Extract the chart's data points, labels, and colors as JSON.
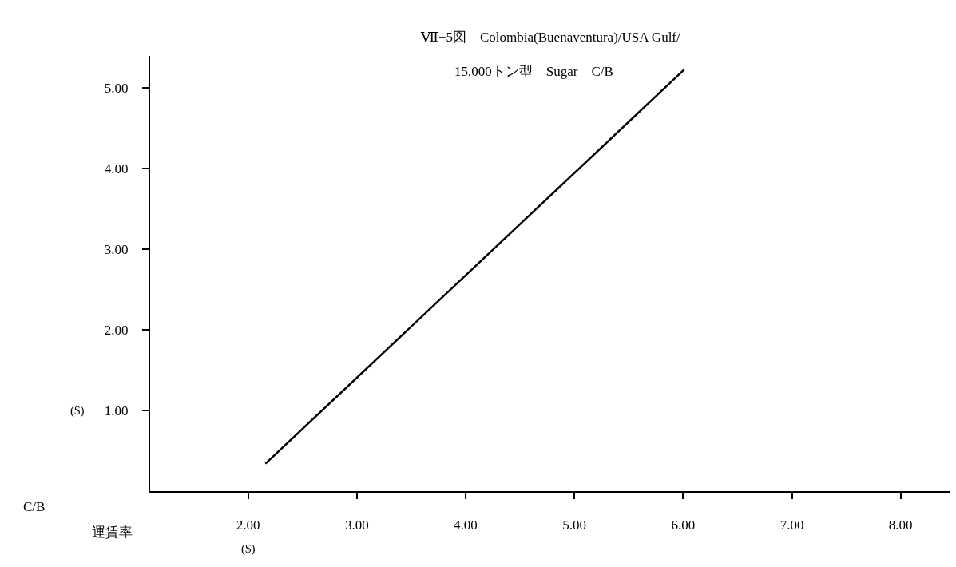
{
  "chart_data": {
    "type": "line",
    "title": "Ⅶ−5図　Colombia(Buenaventura)/USA Gulf/",
    "subtitle": "15,000トン型　Sugar　C/B",
    "xlabel": "($)",
    "ylabel": "($)",
    "annotations": [
      "C/B",
      "運賃率"
    ],
    "series": [
      {
        "color": "#000000",
        "x": [
          2.16,
          6.01
        ],
        "values": [
          0.34,
          5.23
        ]
      }
    ],
    "xlim": [
      1.1,
      8.45
    ],
    "ylim": [
      0,
      5.4
    ],
    "xticks": [
      {
        "value": 2,
        "label": "2.00"
      },
      {
        "value": 3,
        "label": "3.00"
      },
      {
        "value": 4,
        "label": "4.00"
      },
      {
        "value": 5,
        "label": "5.00"
      },
      {
        "value": 6,
        "label": "6.00"
      },
      {
        "value": 7,
        "label": "7.00"
      },
      {
        "value": 8,
        "label": "8.00"
      }
    ],
    "yticks": [
      {
        "value": 1,
        "label": "1.00"
      },
      {
        "value": 2,
        "label": "2.00"
      },
      {
        "value": 3,
        "label": "3.00"
      },
      {
        "value": 4,
        "label": "4.00"
      },
      {
        "value": 5,
        "label": "5.00"
      }
    ],
    "marker": "none",
    "line_style": "solid"
  }
}
